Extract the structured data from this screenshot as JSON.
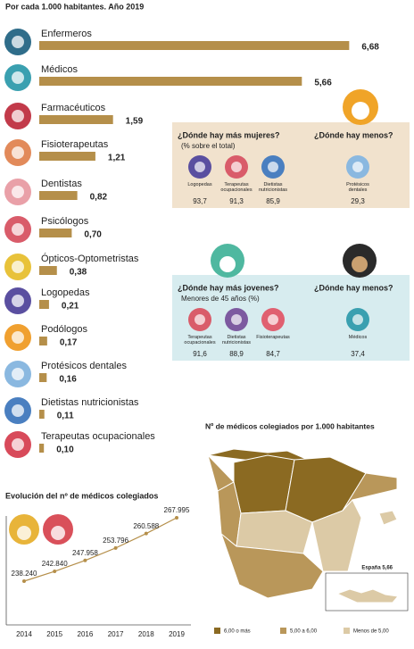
{
  "chart_data": [
    {
      "type": "bar",
      "orientation": "horizontal",
      "subtitle": "Por cada 1.000 habitantes. Año 2019",
      "categories": [
        "Enfermeros",
        "Médicos",
        "Farmacéuticos",
        "Fisioterapeutas",
        "Dentistas",
        "Psicólogos",
        "Ópticos-Optometristas",
        "Logopedas",
        "Podólogos",
        "Protésicos dentales",
        "Dietistas nutricionistas",
        "Terapeutas ocupacionales"
      ],
      "values": [
        6.68,
        5.66,
        1.59,
        1.21,
        0.82,
        0.7,
        0.38,
        0.21,
        0.17,
        0.16,
        0.11,
        0.1
      ],
      "value_labels": [
        "6,68",
        "5,66",
        "1,59",
        "1,21",
        "0,82",
        "0,70",
        "0,38",
        "0,21",
        "0,17",
        "0,16",
        "0,11",
        "0,10"
      ],
      "color": "#b58f4a"
    },
    {
      "type": "line",
      "title": "Evolución del nº de médicos colegiados",
      "x": [
        2014,
        2015,
        2016,
        2017,
        2018,
        2019
      ],
      "values": [
        238240,
        242840,
        247958,
        253796,
        260588,
        267995
      ],
      "value_labels": [
        "238.240",
        "242.840",
        "247.958",
        "253.796",
        "260.588",
        "267.995"
      ],
      "color": "#b58f4a"
    }
  ],
  "panels": [
    {
      "title": "¿Dónde hay más mujeres?",
      "subtitle": "(% sobre el total)",
      "most": [
        {
          "label": "Logopedas",
          "value": "93,7"
        },
        {
          "label": "Terapeutas ocupacionales",
          "value": "91,3"
        },
        {
          "label": "Dietistas nutricionistas",
          "value": "85,9"
        }
      ],
      "less_title": "¿Dónde hay menos?",
      "less": [
        {
          "label": "Protésicos dentales",
          "value": "29,3"
        }
      ],
      "background": "#f1e2cd"
    },
    {
      "title": "¿Dónde hay más jovenes?",
      "subtitle": "Menores de 45 años (%)",
      "most": [
        {
          "label": "Terapeutas ocupacionales",
          "value": "91,6"
        },
        {
          "label": "Dietistas nutricionistas",
          "value": "88,9"
        },
        {
          "label": "Fisioterapeutas",
          "value": "84,7"
        }
      ],
      "less_title": "¿Dónde hay menos?",
      "less": [
        {
          "label": "Médicos",
          "value": "37,4"
        }
      ],
      "background": "#d7ecef"
    }
  ],
  "map": {
    "title": "Nº de médicos colegiados por 1.000 habitantes",
    "note": "España 5,66",
    "legend": [
      {
        "label": "6,00 o más",
        "color": "#8b6a22"
      },
      {
        "label": "5,00 a 6,00",
        "color": "#b9975a"
      },
      {
        "label": "Menos de 5,00",
        "color": "#dccaa6"
      }
    ]
  }
}
